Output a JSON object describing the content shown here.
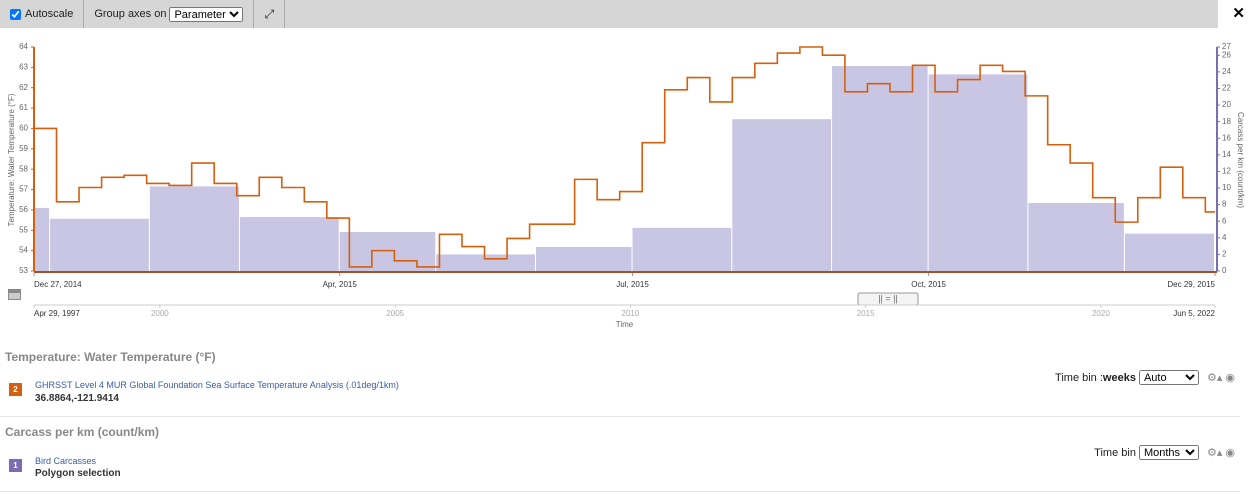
{
  "toolbar": {
    "autoscale": "Autoscale",
    "group_axes_label": "Group axes on",
    "group_axes_value": "Parameter"
  },
  "chart_data": {
    "type": "step-bar",
    "y_label": "Temperature: Water Temperature (°F)",
    "y2_label": "Carcass per km (count/km)",
    "xlim": [
      "2014-12-27",
      "2015-12-29"
    ],
    "xticks": [
      {
        "value": "2014-12-27",
        "label": "Dec 27, 2014"
      },
      {
        "value": "2015-04-01",
        "label": "Apr, 2015"
      },
      {
        "value": "2015-07-01",
        "label": "Jul, 2015"
      },
      {
        "value": "2015-10-01",
        "label": "Oct, 2015"
      },
      {
        "value": "2015-12-29",
        "label": "Dec 29, 2015"
      }
    ],
    "ylim": [
      53,
      64
    ],
    "yticks": [
      53,
      54,
      55,
      56,
      57,
      58,
      59,
      60,
      61,
      62,
      63,
      64
    ],
    "y2lim": [
      0,
      27
    ],
    "y2ticks": [
      0,
      2,
      4,
      6,
      8,
      10,
      12,
      14,
      16,
      18,
      20,
      22,
      24,
      26,
      27
    ],
    "series": [
      {
        "name": "Bird Carcasses",
        "axis": "y2",
        "color": "#c9c6e3",
        "bins": [
          "2014-12-27",
          "2015-01-01",
          "2015-02-01",
          "2015-03-01",
          "2015-04-01",
          "2015-05-01",
          "2015-06-01",
          "2015-07-01",
          "2015-08-01",
          "2015-09-01",
          "2015-10-01",
          "2015-11-01",
          "2015-12-01",
          "2015-12-29"
        ],
        "values": [
          7.6,
          6.3,
          10.2,
          6.5,
          4.7,
          2.0,
          2.9,
          5.2,
          18.3,
          24.7,
          23.7,
          8.2,
          4.5
        ]
      },
      {
        "name": "GHRSST Level 4 MUR Global Foundation Sea Surface Temperature Analysis (.01deg/1km)",
        "axis": "y",
        "color": "#d4600f",
        "x": [
          "2014-12-27",
          "2015-01-03",
          "2015-01-10",
          "2015-01-17",
          "2015-01-24",
          "2015-01-31",
          "2015-02-07",
          "2015-02-14",
          "2015-02-21",
          "2015-02-28",
          "2015-03-07",
          "2015-03-14",
          "2015-03-21",
          "2015-03-28",
          "2015-04-04",
          "2015-04-11",
          "2015-04-18",
          "2015-04-25",
          "2015-05-02",
          "2015-05-09",
          "2015-05-16",
          "2015-05-23",
          "2015-05-30",
          "2015-06-06",
          "2015-06-13",
          "2015-06-20",
          "2015-06-27",
          "2015-07-04",
          "2015-07-11",
          "2015-07-18",
          "2015-07-25",
          "2015-08-01",
          "2015-08-08",
          "2015-08-15",
          "2015-08-22",
          "2015-08-29",
          "2015-09-05",
          "2015-09-12",
          "2015-09-19",
          "2015-09-26",
          "2015-10-03",
          "2015-10-10",
          "2015-10-17",
          "2015-10-24",
          "2015-10-31",
          "2015-11-07",
          "2015-11-14",
          "2015-11-21",
          "2015-11-28",
          "2015-12-05",
          "2015-12-12",
          "2015-12-19",
          "2015-12-26"
        ],
        "values": [
          60.0,
          56.4,
          57.1,
          57.6,
          57.7,
          57.3,
          57.2,
          58.3,
          57.3,
          56.7,
          57.6,
          57.1,
          56.4,
          55.6,
          53.2,
          54.0,
          53.5,
          53.2,
          54.8,
          54.2,
          53.6,
          54.6,
          55.3,
          55.3,
          57.5,
          56.5,
          56.9,
          59.3,
          61.9,
          62.5,
          61.3,
          62.5,
          63.2,
          63.7,
          64.0,
          63.6,
          61.8,
          62.2,
          61.8,
          63.1,
          61.8,
          62.4,
          63.1,
          62.8,
          61.6,
          59.2,
          58.3,
          56.6,
          55.4,
          56.6,
          58.1,
          56.6,
          55.9
        ]
      }
    ],
    "navigator": {
      "xlim": [
        "1997-04-29",
        "2022-06-05"
      ],
      "xticks": [
        {
          "value": "1997-04-29",
          "label": "Apr 29, 1997"
        },
        2000,
        2005,
        2010,
        2015,
        2020,
        {
          "value": "2022-06-05",
          "label": "Jun 5, 2022"
        }
      ],
      "x_label": "Time"
    }
  },
  "panels": [
    {
      "title": "Temperature: Water Temperature (°F)",
      "badge": "2",
      "dataset": "GHRSST Level 4 MUR Global Foundation Sea Surface Temperature Analysis (.01deg/1km)",
      "detail": "36.8864,-121.9414",
      "time_bin_label": "Time bin : ",
      "time_bin_unit": "weeks",
      "time_bin_value": "Auto"
    },
    {
      "title": "Carcass per km (count/km)",
      "badge": "1",
      "dataset": "Bird Carcasses",
      "detail": "Polygon selection",
      "time_bin_label": "Time bin",
      "time_bin_value": "Months"
    }
  ]
}
